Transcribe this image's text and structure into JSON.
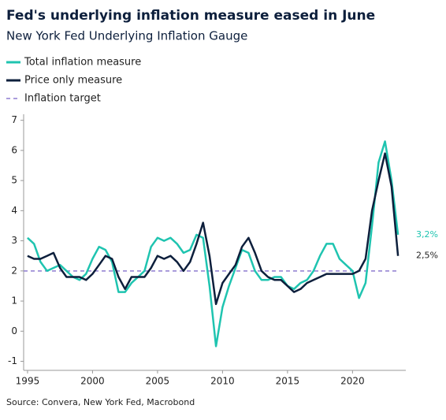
{
  "chart_data": {
    "type": "line",
    "title": "Fed's underlying inflation measure eased in June",
    "subtitle": "New York Fed Underlying Inflation Gauge",
    "source": "Source: Convera, New York Fed, Macrobond",
    "x": [
      1995,
      1995.5,
      1996,
      1996.5,
      1997,
      1997.5,
      1998,
      1998.5,
      1999,
      1999.5,
      2000,
      2000.5,
      2001,
      2001.5,
      2002,
      2002.5,
      2003,
      2003.5,
      2004,
      2004.5,
      2005,
      2005.5,
      2006,
      2006.5,
      2007,
      2007.5,
      2008,
      2008.5,
      2009,
      2009.5,
      2010,
      2010.5,
      2011,
      2011.5,
      2012,
      2012.5,
      2013,
      2013.5,
      2014,
      2014.5,
      2015,
      2015.5,
      2016,
      2016.5,
      2017,
      2017.5,
      2018,
      2018.5,
      2019,
      2019.5,
      2020,
      2020.5,
      2021,
      2021.5,
      2022,
      2022.5,
      2023,
      2023.5
    ],
    "series": [
      {
        "name": "Total inflation measure",
        "color": "#1fc4b0",
        "last_label": "3,2%",
        "values": [
          3.1,
          2.9,
          2.3,
          2.0,
          2.1,
          2.2,
          2.0,
          1.8,
          1.7,
          1.9,
          2.4,
          2.8,
          2.7,
          2.3,
          1.3,
          1.3,
          1.6,
          1.8,
          2.0,
          2.8,
          3.1,
          3.0,
          3.1,
          2.9,
          2.6,
          2.7,
          3.2,
          3.1,
          1.5,
          -0.5,
          0.8,
          1.5,
          2.1,
          2.7,
          2.6,
          2.0,
          1.7,
          1.7,
          1.8,
          1.8,
          1.5,
          1.4,
          1.6,
          1.7,
          2.0,
          2.5,
          2.9,
          2.9,
          2.4,
          2.2,
          2.0,
          1.1,
          1.6,
          3.5,
          5.6,
          6.3,
          5.0,
          3.2
        ]
      },
      {
        "name": "Price only measure",
        "color": "#0d1f3c",
        "last_label": "2,5%",
        "values": [
          2.5,
          2.4,
          2.4,
          2.5,
          2.6,
          2.1,
          1.8,
          1.8,
          1.8,
          1.7,
          1.9,
          2.2,
          2.5,
          2.4,
          1.8,
          1.4,
          1.8,
          1.8,
          1.8,
          2.1,
          2.5,
          2.4,
          2.5,
          2.3,
          2.0,
          2.3,
          2.9,
          3.6,
          2.5,
          0.9,
          1.6,
          1.9,
          2.2,
          2.8,
          3.1,
          2.6,
          2.0,
          1.8,
          1.7,
          1.7,
          1.5,
          1.3,
          1.4,
          1.6,
          1.7,
          1.8,
          1.9,
          1.9,
          1.9,
          1.9,
          1.9,
          2.0,
          2.4,
          4.0,
          5.0,
          5.9,
          4.8,
          2.5
        ]
      }
    ],
    "reference_line": {
      "name": "Inflation target",
      "value": 2,
      "color": "#8e7cd0"
    },
    "xlim": [
      1994.7,
      2024.1
    ],
    "xticks": [
      1995,
      2000,
      2005,
      2010,
      2015,
      2020
    ],
    "ylim": [
      -1.3,
      7.2
    ],
    "yticks": [
      -1,
      0,
      1,
      2,
      3,
      4,
      5,
      6,
      7
    ]
  }
}
